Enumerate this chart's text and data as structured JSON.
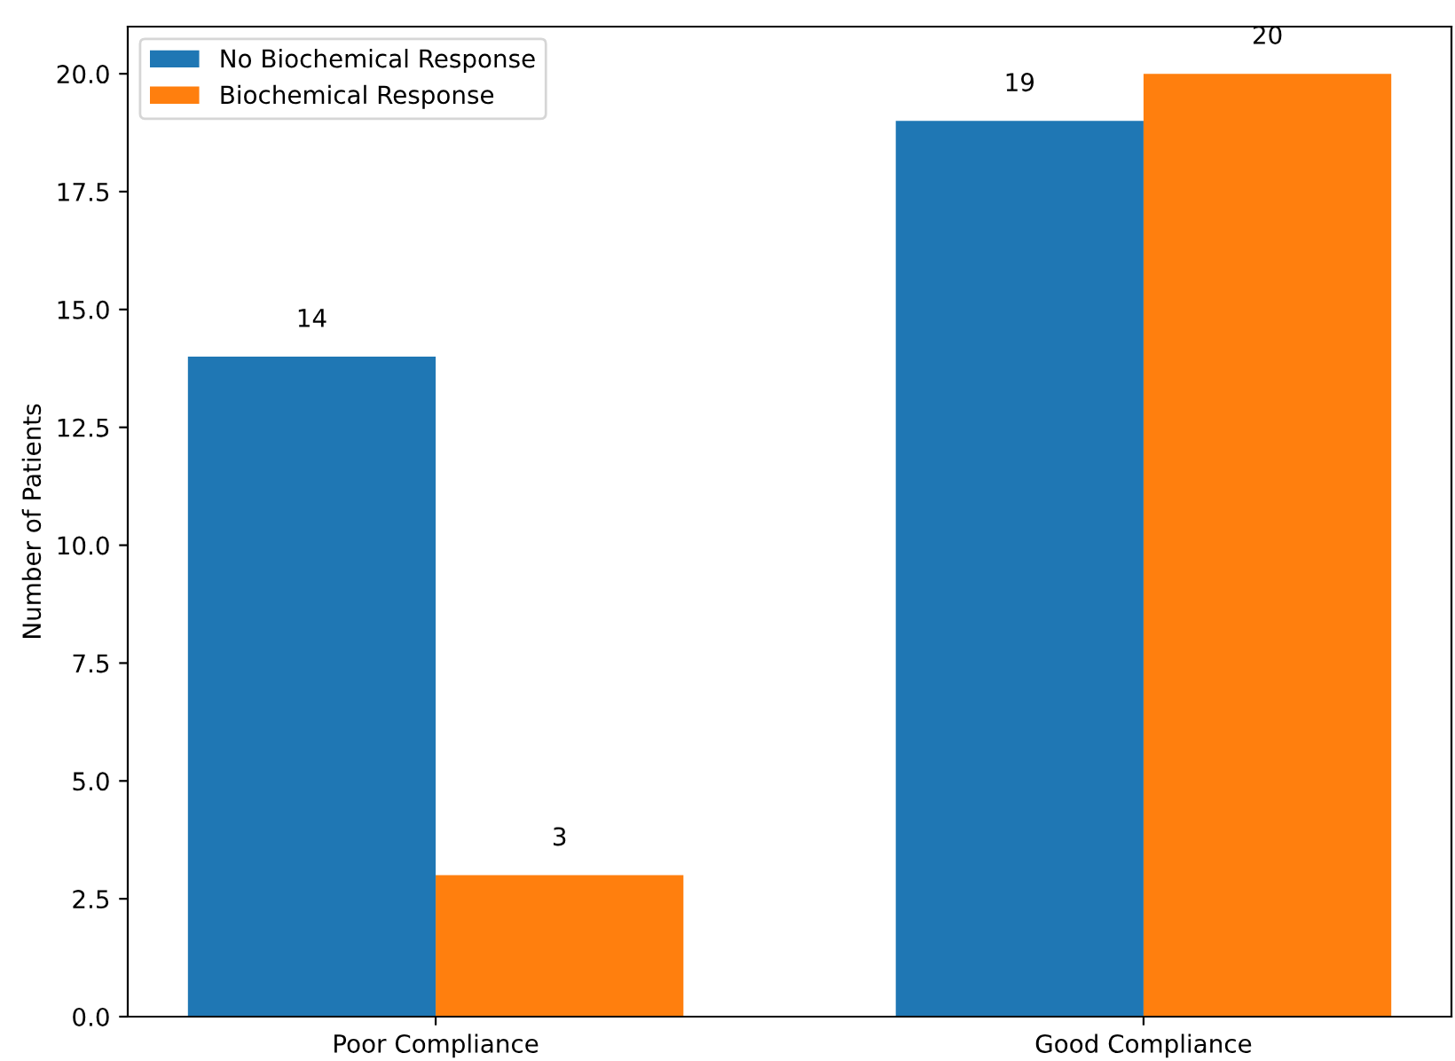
{
  "chart_data": {
    "type": "bar",
    "ylabel": "Number of Patients",
    "categories": [
      "Poor Compliance",
      "Good Compliance"
    ],
    "series": [
      {
        "name": "No Biochemical Response",
        "color": "#1f77b4",
        "values": [
          14,
          19
        ]
      },
      {
        "name": "Biochemical Response",
        "color": "#ff7f0e",
        "values": [
          3,
          20
        ]
      }
    ],
    "ylim": [
      0,
      21
    ],
    "yticks": [
      {
        "value": 0,
        "label": "0.0"
      },
      {
        "value": 2.5,
        "label": "2.5"
      },
      {
        "value": 5,
        "label": "5.0"
      },
      {
        "value": 7.5,
        "label": "7.5"
      },
      {
        "value": 10,
        "label": "10.0"
      },
      {
        "value": 12.5,
        "label": "12.5"
      },
      {
        "value": 15,
        "label": "15.0"
      },
      {
        "value": 17.5,
        "label": "17.5"
      },
      {
        "value": 20,
        "label": "20.0"
      }
    ],
    "data_labels": true,
    "legend": "top left",
    "grid": false
  }
}
